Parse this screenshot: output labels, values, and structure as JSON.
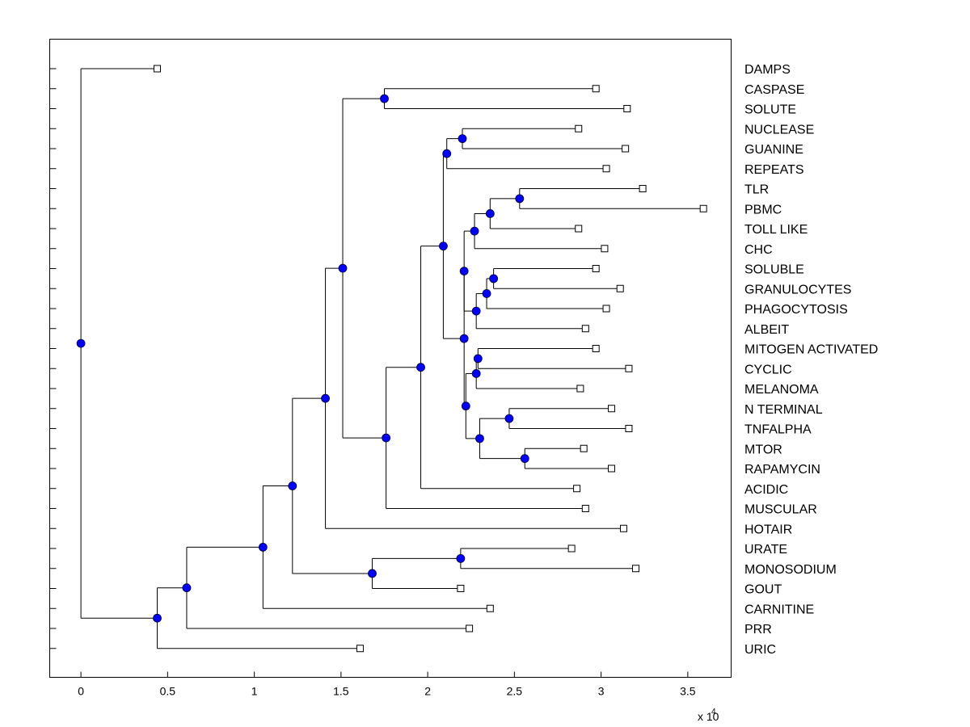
{
  "chart_data": {
    "type": "dendrogram",
    "title": "",
    "xlabel": "",
    "ylabel": "",
    "x_scale_note": "x 10",
    "x_scale_exponent": "4",
    "xlim": [
      -0.18,
      3.75
    ],
    "x_ticks": [
      0,
      0.5,
      1,
      1.5,
      2,
      2.5,
      3,
      3.5
    ],
    "x_tick_labels": [
      "0",
      "0.5",
      "1",
      "1.5",
      "2",
      "2.5",
      "3",
      "3.5"
    ],
    "grid": false,
    "colors": {
      "node_fill": "#0000ff",
      "leaf_fill": "#ffffff",
      "line": "#000000"
    },
    "leaves": [
      {
        "label": "DAMPS",
        "x": 0.44
      },
      {
        "label": "CASPASE",
        "x": 2.97
      },
      {
        "label": "SOLUTE",
        "x": 3.15
      },
      {
        "label": "NUCLEASE",
        "x": 2.87
      },
      {
        "label": "GUANINE",
        "x": 3.14
      },
      {
        "label": "REPEATS",
        "x": 3.03
      },
      {
        "label": "TLR",
        "x": 3.24
      },
      {
        "label": "PBMC",
        "x": 3.59
      },
      {
        "label": "TOLL LIKE",
        "x": 2.87
      },
      {
        "label": "CHC",
        "x": 3.02
      },
      {
        "label": "SOLUBLE",
        "x": 2.97
      },
      {
        "label": "GRANULOCYTES",
        "x": 3.11
      },
      {
        "label": "PHAGOCYTOSIS",
        "x": 3.03
      },
      {
        "label": "ALBEIT",
        "x": 2.91
      },
      {
        "label": "MITOGEN ACTIVATED",
        "x": 2.97
      },
      {
        "label": "CYCLIC",
        "x": 3.16
      },
      {
        "label": "MELANOMA",
        "x": 2.88
      },
      {
        "label": "N TERMINAL",
        "x": 3.06
      },
      {
        "label": "TNFALPHA",
        "x": 3.16
      },
      {
        "label": "MTOR",
        "x": 2.9
      },
      {
        "label": "RAPAMYCIN",
        "x": 3.06
      },
      {
        "label": "ACIDIC",
        "x": 2.86
      },
      {
        "label": "MUSCULAR",
        "x": 2.91
      },
      {
        "label": "HOTAIR",
        "x": 3.13
      },
      {
        "label": "URATE",
        "x": 2.83
      },
      {
        "label": "MONOSODIUM",
        "x": 3.2
      },
      {
        "label": "GOUT",
        "x": 2.19
      },
      {
        "label": "CARNITINE",
        "x": 2.36
      },
      {
        "label": "PRR",
        "x": 2.24
      },
      {
        "label": "URIC",
        "x": 1.61
      }
    ],
    "nodes": [
      {
        "id": "n_root",
        "x": 0.0,
        "children": [
          "L0",
          "n_a1"
        ]
      },
      {
        "id": "n_a1",
        "x": 0.44,
        "children": [
          "n_a2",
          "L29"
        ]
      },
      {
        "id": "n_a2",
        "x": 0.61,
        "children": [
          "n_a3",
          "L28"
        ]
      },
      {
        "id": "n_a3",
        "x": 1.05,
        "children": [
          "n_a4",
          "L27"
        ]
      },
      {
        "id": "n_a4",
        "x": 1.22,
        "children": [
          "n_b1",
          "n_c1"
        ]
      },
      {
        "id": "n_c1",
        "x": 1.68,
        "children": [
          "n_c2",
          "L26"
        ]
      },
      {
        "id": "n_c2",
        "x": 2.19,
        "children": [
          "L24",
          "L25"
        ]
      },
      {
        "id": "n_b1",
        "x": 1.41,
        "children": [
          "n_b2",
          "L23"
        ]
      },
      {
        "id": "n_b2",
        "x": 1.51,
        "children": [
          "n_cs",
          "n_b3"
        ]
      },
      {
        "id": "n_cs",
        "x": 1.75,
        "children": [
          "L1",
          "L2"
        ]
      },
      {
        "id": "n_b3",
        "x": 1.76,
        "children": [
          "n_b4",
          "L22"
        ]
      },
      {
        "id": "n_b4",
        "x": 1.96,
        "children": [
          "n_b5",
          "L21"
        ]
      },
      {
        "id": "n_b5",
        "x": 2.09,
        "children": [
          "n_b6",
          "n_e1"
        ]
      },
      {
        "id": "n_b6",
        "x": 2.11,
        "children": [
          "n_ng",
          "L5"
        ]
      },
      {
        "id": "n_ng",
        "x": 2.2,
        "children": [
          "L3",
          "L4"
        ]
      },
      {
        "id": "n_e1",
        "x": 2.21,
        "children": [
          "n_d1",
          "n_f1"
        ]
      },
      {
        "id": "n_d1",
        "x": 2.21,
        "children": [
          "n_d2",
          "n_g1"
        ]
      },
      {
        "id": "n_d2",
        "x": 2.27,
        "children": [
          "n_d3",
          "L9"
        ]
      },
      {
        "id": "n_d3",
        "x": 2.36,
        "children": [
          "n_tp",
          "L8"
        ]
      },
      {
        "id": "n_tp",
        "x": 2.53,
        "children": [
          "L6",
          "L7"
        ]
      },
      {
        "id": "n_g1",
        "x": 2.28,
        "children": [
          "n_g2",
          "L13"
        ]
      },
      {
        "id": "n_g2",
        "x": 2.34,
        "children": [
          "n_sg",
          "L12"
        ]
      },
      {
        "id": "n_sg",
        "x": 2.38,
        "children": [
          "L10",
          "L11"
        ]
      },
      {
        "id": "n_f1",
        "x": 2.22,
        "children": [
          "n_f2",
          "n_h1"
        ]
      },
      {
        "id": "n_f2",
        "x": 2.28,
        "children": [
          "n_mc",
          "L16"
        ]
      },
      {
        "id": "n_mc",
        "x": 2.29,
        "children": [
          "L14",
          "L15"
        ]
      },
      {
        "id": "n_h1",
        "x": 2.3,
        "children": [
          "n_nt",
          "n_mr"
        ]
      },
      {
        "id": "n_nt",
        "x": 2.47,
        "children": [
          "L17",
          "L18"
        ]
      },
      {
        "id": "n_mr",
        "x": 2.56,
        "children": [
          "L19",
          "L20"
        ]
      }
    ]
  }
}
